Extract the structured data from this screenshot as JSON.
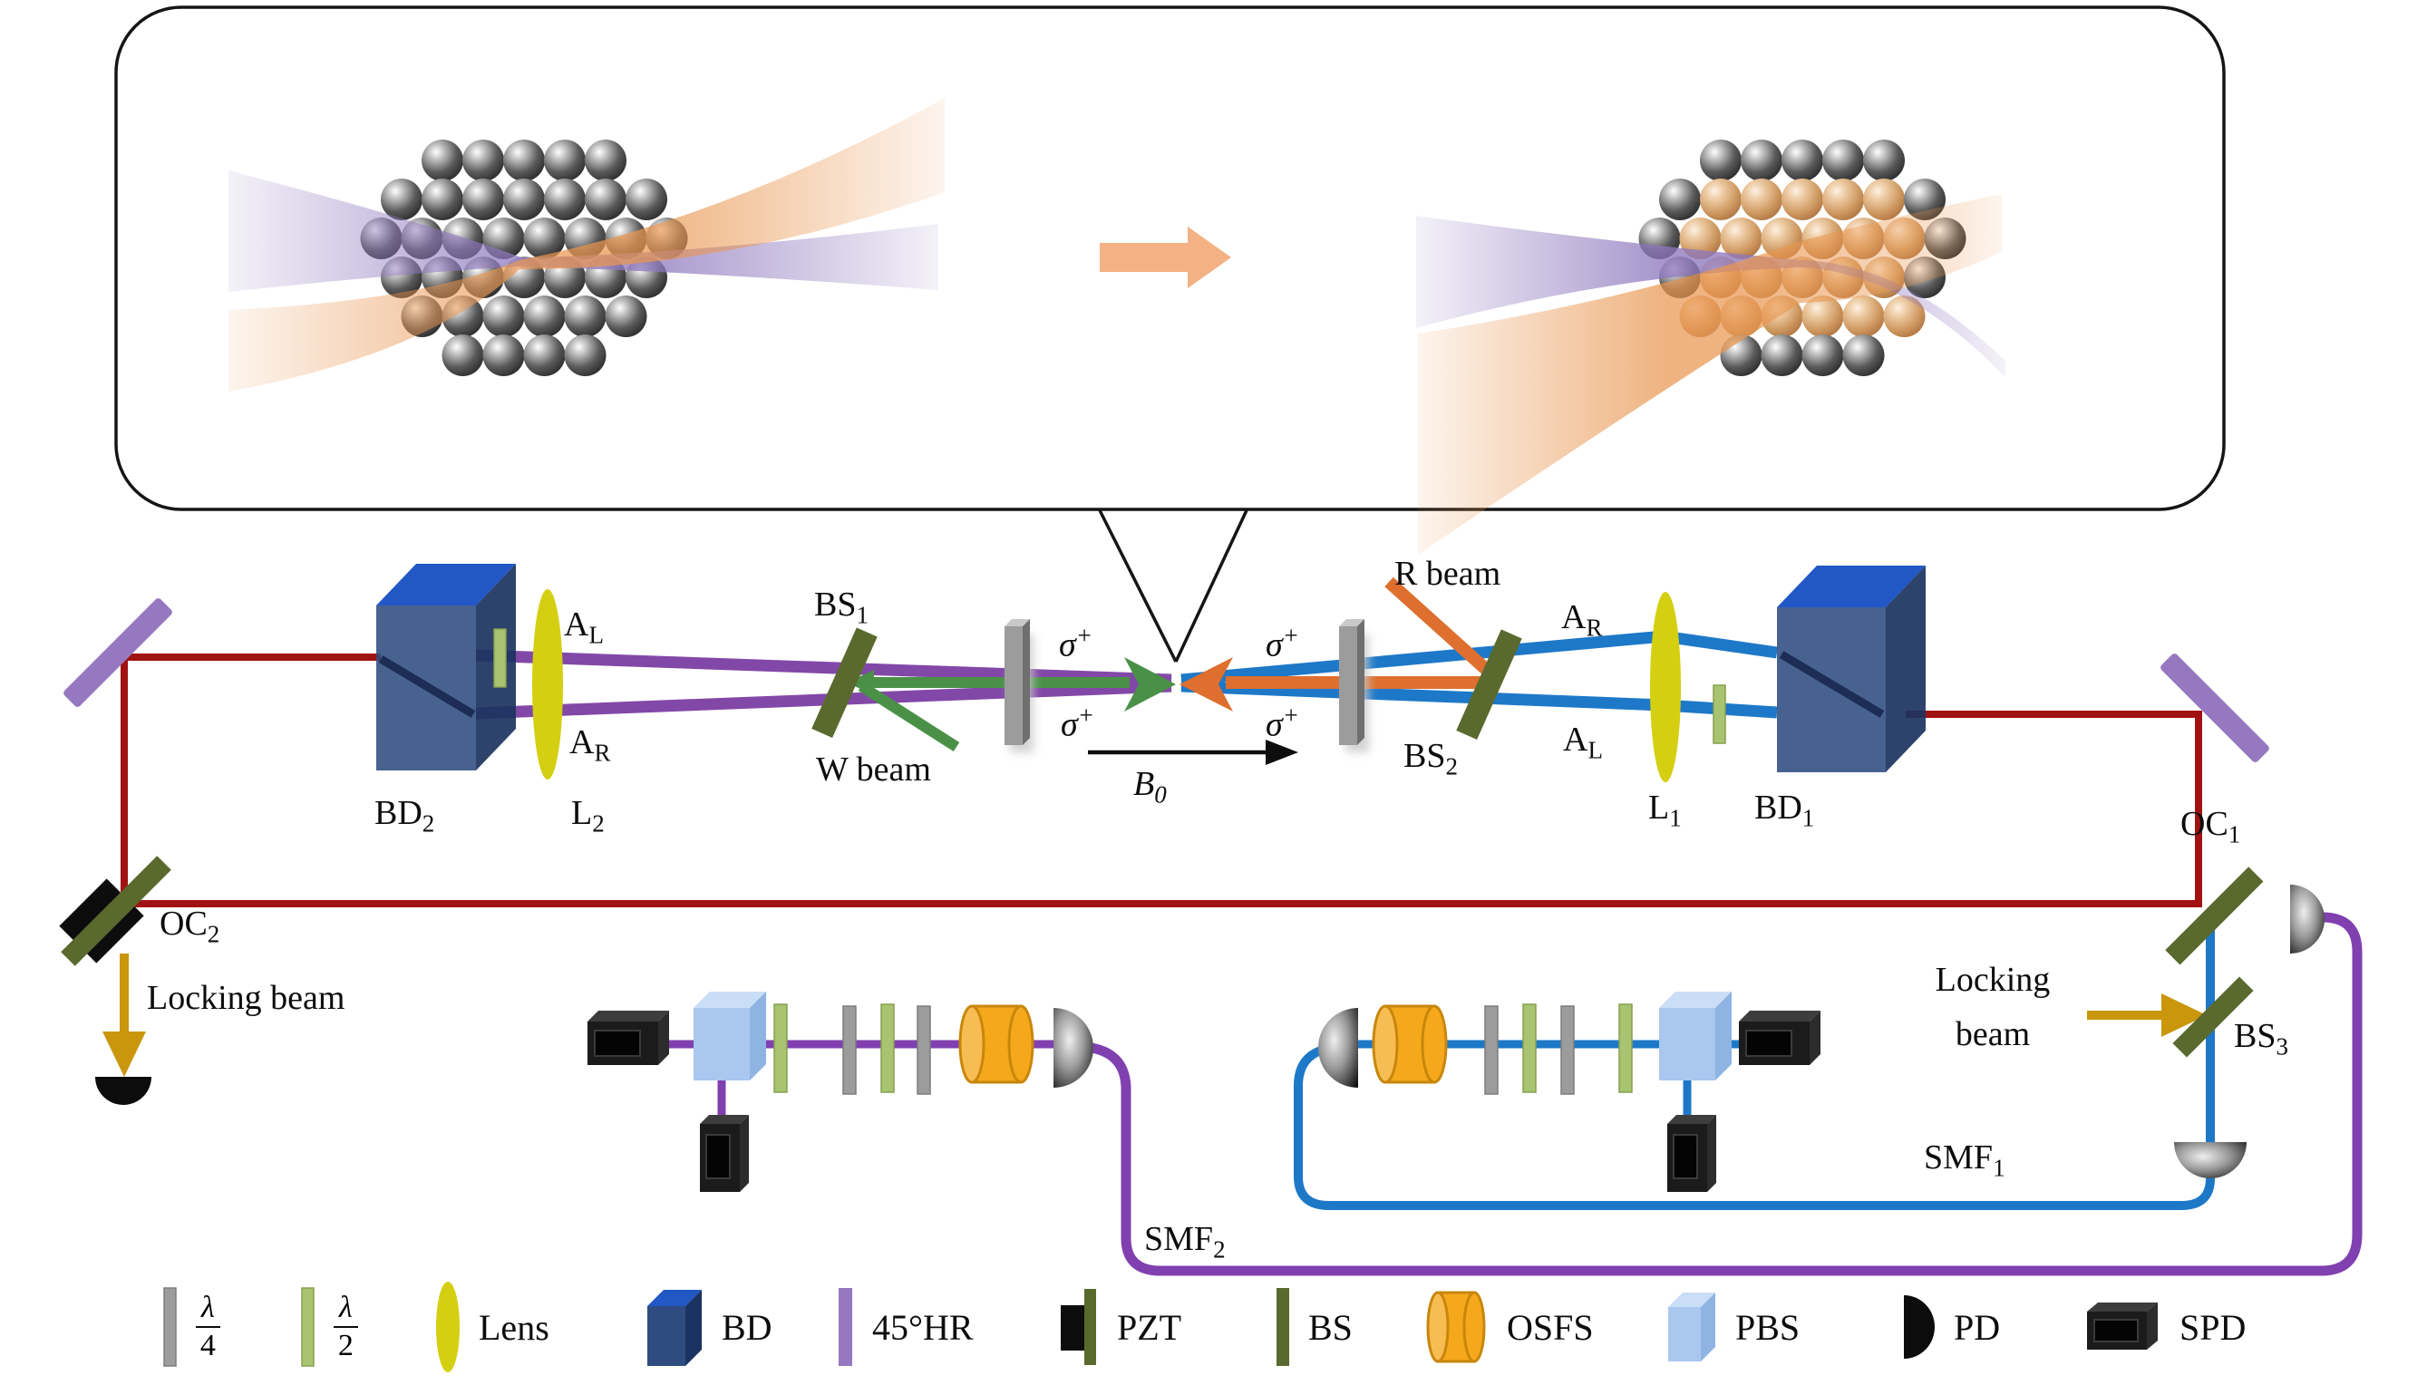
{
  "figure": {
    "type": "optical-tweezer-cavity-setup-schematic"
  },
  "labels": {
    "a_l_left": {
      "text": "A",
      "sub": "L"
    },
    "a_r_left": {
      "text": "A",
      "sub": "R"
    },
    "bs1": {
      "text": "BS",
      "sub": "1"
    },
    "w_beam": {
      "text": "W beam"
    },
    "bd2": {
      "text": "BD",
      "sub": "2"
    },
    "l2": {
      "text": "L",
      "sub": "2"
    },
    "sigma_upper_left": {
      "text": "σ",
      "sup": "+"
    },
    "sigma_lower_left": {
      "text": "σ",
      "sup": "+"
    },
    "sigma_upper_right": {
      "text": "σ",
      "sup": "+"
    },
    "sigma_lower_right": {
      "text": "σ",
      "sup": "+"
    },
    "b0": {
      "text": "B",
      "sub": "0"
    },
    "r_beam": {
      "text": "R beam"
    },
    "bs2": {
      "text": "BS",
      "sub": "2"
    },
    "a_r_right": {
      "text": "A",
      "sub": "R"
    },
    "a_l_right": {
      "text": "A",
      "sub": "L"
    },
    "l1": {
      "text": "L",
      "sub": "1"
    },
    "bd1": {
      "text": "BD",
      "sub": "1"
    },
    "oc1": {
      "text": "OC",
      "sub": "1"
    },
    "oc2": {
      "text": "OC",
      "sub": "2"
    },
    "locking_beam_left": {
      "text": "Locking beam"
    },
    "locking_right_line1": {
      "text": "Locking"
    },
    "locking_right_line2": {
      "text": "beam"
    },
    "bs3": {
      "text": "BS",
      "sub": "3"
    },
    "smf1": {
      "text": "SMF",
      "sub": "1"
    },
    "smf2": {
      "text": "SMF",
      "sub": "2"
    }
  },
  "legend": {
    "items": [
      {
        "icon": "quarter-waveplate-icon",
        "frac_top": "λ",
        "frac_bottom": "4"
      },
      {
        "icon": "half-waveplate-icon",
        "frac_top": "λ",
        "frac_bottom": "2"
      },
      {
        "icon": "lens-icon",
        "label": "Lens"
      },
      {
        "icon": "beam-displacer-icon",
        "label": "BD"
      },
      {
        "icon": "mirror-45hr-icon",
        "label": "45°HR"
      },
      {
        "icon": "pzt-icon",
        "label": "PZT"
      },
      {
        "icon": "beamsplitter-icon",
        "label": "BS"
      },
      {
        "icon": "osfs-icon",
        "label": "OSFS"
      },
      {
        "icon": "pbs-icon",
        "label": "PBS"
      },
      {
        "icon": "photodiode-icon",
        "label": "PD"
      },
      {
        "icon": "spd-icon",
        "label": "SPD"
      }
    ]
  },
  "colors": {
    "red_beam": "#A11212",
    "purple_beam": "#8248A8",
    "blue_beam": "#1E78C8",
    "green_beam": "#4A9147",
    "orange_beam": "#DE6F2E",
    "gold_beam": "#C9960C",
    "fiber_purple": "#8040B0",
    "olive": "#5A692D",
    "mirror_purple": "#9678C0",
    "plate_gray": "#9C9C9C",
    "plate_green": "#A9C471",
    "lens_yellow": "#D5CF12",
    "bd_front": "#2E4C80",
    "bd_top": "#2257C6",
    "bd_side": "#1B3360",
    "pbs_front": "#A9C7EF",
    "pbs_top": "#CBDEF7",
    "pbs_side": "#8FB3E3",
    "osfs_orange": "#F5A81C",
    "inset_arrow": "#F4B183",
    "atom_orange": "#C98C55"
  }
}
